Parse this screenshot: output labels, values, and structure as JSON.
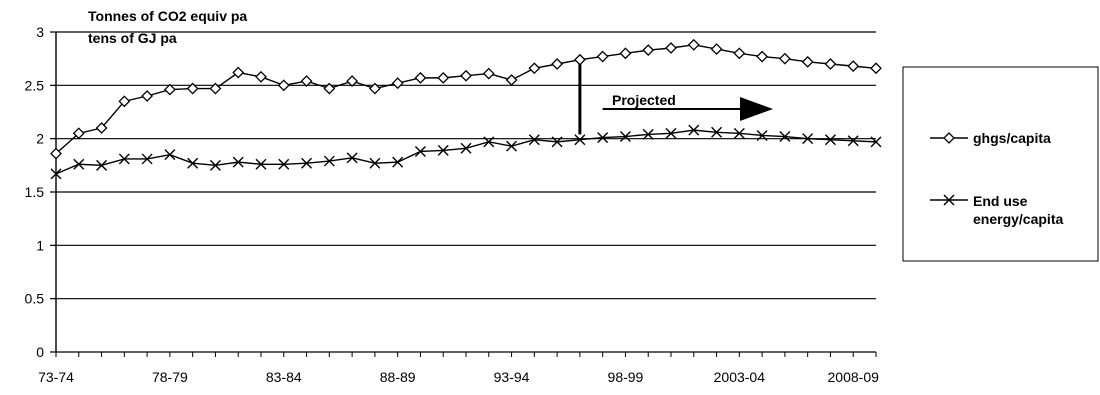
{
  "chart_data": {
    "type": "line",
    "ylabel_lines": [
      "Tonnes of CO2 equiv pa",
      "tens of GJ pa"
    ],
    "xlabel": "",
    "ylim": [
      0,
      3
    ],
    "yticks": [
      "0",
      "0.5",
      "1",
      "1.5",
      "2",
      "2.5",
      "3"
    ],
    "ytick_values": [
      0,
      0.5,
      1,
      1.5,
      2,
      2.5,
      3
    ],
    "grid": "horizontal",
    "legend_placement": "right",
    "annotation": "Projected",
    "projection_start_category": "96-97",
    "x": [
      "73-74",
      "74-75",
      "75-76",
      "76-77",
      "77-78",
      "78-79",
      "79-80",
      "80-81",
      "81-82",
      "82-83",
      "83-84",
      "84-85",
      "85-86",
      "86-87",
      "87-88",
      "88-89",
      "89-90",
      "90-91",
      "91-92",
      "92-93",
      "93-94",
      "94-95",
      "95-96",
      "96-97",
      "97-98",
      "98-99",
      "99-00",
      "00-01",
      "01-02",
      "02-03",
      "03-04",
      "04-05",
      "05-06",
      "06-07",
      "07-08",
      "08-09",
      "09-10"
    ],
    "xtick_labels": [
      "73-74",
      "78-79",
      "83-84",
      "88-89",
      "93-94",
      "98-99",
      "2003-04",
      "2008-09"
    ],
    "xtick_indices": [
      0,
      5,
      10,
      15,
      20,
      25,
      30,
      35
    ],
    "series": [
      {
        "name": "ghgs/capita",
        "marker": "diamond",
        "values": [
          1.86,
          2.05,
          2.1,
          2.35,
          2.4,
          2.46,
          2.47,
          2.47,
          2.62,
          2.58,
          2.5,
          2.54,
          2.47,
          2.54,
          2.47,
          2.52,
          2.57,
          2.57,
          2.59,
          2.61,
          2.55,
          2.66,
          2.7,
          2.74,
          2.77,
          2.8,
          2.83,
          2.85,
          2.88,
          2.84,
          2.8,
          2.77,
          2.75,
          2.72,
          2.7,
          2.68,
          2.66
        ]
      },
      {
        "name": "End use energy/capita",
        "marker": "x",
        "values": [
          1.67,
          1.76,
          1.75,
          1.81,
          1.81,
          1.85,
          1.77,
          1.75,
          1.78,
          1.76,
          1.76,
          1.77,
          1.79,
          1.82,
          1.77,
          1.78,
          1.88,
          1.89,
          1.91,
          1.97,
          1.93,
          1.99,
          1.97,
          1.99,
          2.01,
          2.02,
          2.04,
          2.05,
          2.08,
          2.06,
          2.05,
          2.03,
          2.02,
          2.0,
          1.99,
          1.98,
          1.97
        ]
      }
    ],
    "legend_labels": {
      "series0": "ghgs/capita",
      "series1_line1": "End use",
      "series1_line2": "energy/capita"
    },
    "colors": {
      "line": "#000000",
      "grid": "#000000",
      "background": "#ffffff"
    }
  }
}
